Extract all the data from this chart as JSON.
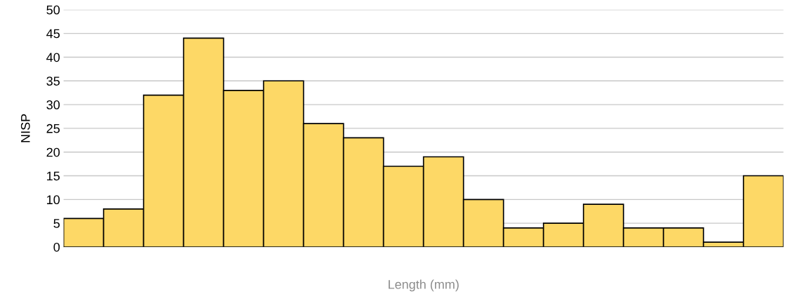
{
  "chart_data": {
    "type": "bar",
    "xlabel": "Length (mm)",
    "ylabel": "NISP",
    "categories": [
      null,
      null,
      null,
      null,
      null,
      null,
      null,
      null,
      null,
      null,
      null,
      null,
      null,
      null,
      null,
      null,
      null,
      null
    ],
    "values": [
      6,
      8,
      32,
      44,
      33,
      35,
      26,
      23,
      17,
      19,
      10,
      4,
      5,
      9,
      4,
      4,
      1,
      15
    ],
    "color": "#fdd866",
    "ylim": [
      0,
      50
    ],
    "yticks": [
      0,
      5,
      10,
      15,
      20,
      25,
      30,
      35,
      40,
      45,
      50
    ],
    "grid": "y",
    "legend": false
  }
}
